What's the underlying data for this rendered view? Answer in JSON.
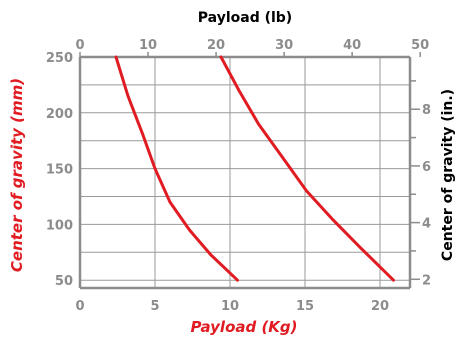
{
  "chart_data": {
    "type": "line",
    "title": "Payload (lb)",
    "xlabel": "Payload (Kg)",
    "ylabel": "Center of gravity (mm)",
    "y2label": "Center of gravity (in.)",
    "xlim": [
      0,
      22
    ],
    "ylim": [
      43,
      250
    ],
    "x_ticks": [
      {
        "value": 0,
        "label": "0"
      },
      {
        "value": 5,
        "label": "5"
      },
      {
        "value": 10,
        "label": "10"
      },
      {
        "value": 15,
        "label": "15"
      },
      {
        "value": 20,
        "label": "20"
      }
    ],
    "x2_ticks": [
      {
        "value": 0,
        "label": "0"
      },
      {
        "value": 10,
        "label": "10"
      },
      {
        "value": 20,
        "label": "20"
      },
      {
        "value": 30,
        "label": "30"
      },
      {
        "value": 40,
        "label": "40"
      },
      {
        "value": 50,
        "label": "50"
      }
    ],
    "y_ticks": [
      {
        "value": 50,
        "label": "50"
      },
      {
        "value": 100,
        "label": "100"
      },
      {
        "value": 150,
        "label": "150"
      },
      {
        "value": 200,
        "label": "200"
      },
      {
        "value": 250,
        "label": "250"
      }
    ],
    "y2_ticks": [
      {
        "value": 2,
        "label": "2"
      },
      {
        "value": 4,
        "label": "4"
      },
      {
        "value": 6,
        "label": "6"
      },
      {
        "value": 8,
        "label": "8"
      }
    ],
    "y2_minor_ticks": [
      1,
      3,
      5,
      7,
      9
    ],
    "grid": true,
    "series": [
      {
        "color": "#e11b22",
        "points": [
          [
            2.4,
            250
          ],
          [
            3.2,
            215
          ],
          [
            4.2,
            180
          ],
          [
            5.0,
            150
          ],
          [
            6.0,
            120
          ],
          [
            7.3,
            95
          ],
          [
            8.7,
            73
          ],
          [
            10.5,
            50
          ]
        ]
      },
      {
        "color": "#e11b22",
        "points": [
          [
            9.4,
            250
          ],
          [
            10.6,
            220
          ],
          [
            11.9,
            190
          ],
          [
            13.5,
            160
          ],
          [
            15.1,
            130
          ],
          [
            16.8,
            105
          ],
          [
            18.7,
            79
          ],
          [
            20.9,
            50
          ]
        ]
      }
    ]
  }
}
